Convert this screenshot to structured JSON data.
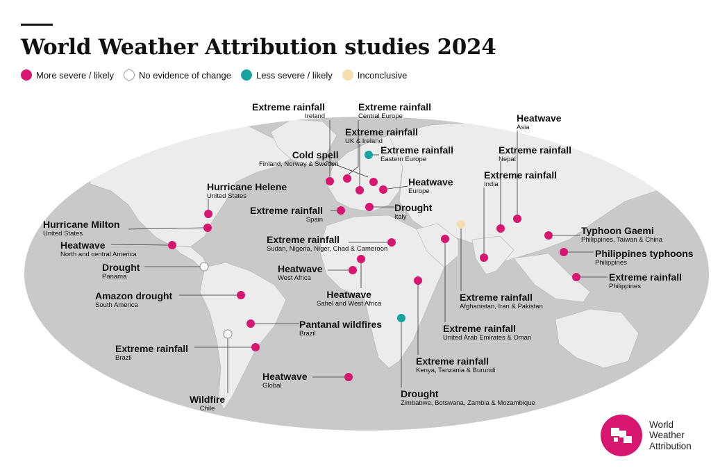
{
  "title": "World Weather Attribution studies 2024",
  "colors": {
    "more_severe": "#d6166f",
    "no_evidence": "#ffffff",
    "less_severe": "#17a3a0",
    "inconclusive": "#f6dfae",
    "land": "#ececec",
    "ocean": "#c9c9c9"
  },
  "legend": [
    {
      "key": "more_severe",
      "label": "More severe / likely"
    },
    {
      "key": "no_evidence",
      "label": "No evidence of change"
    },
    {
      "key": "less_severe",
      "label": "Less severe / likely"
    },
    {
      "key": "inconclusive",
      "label": "Inconclusive"
    }
  ],
  "studies": [
    {
      "title": "Extreme rainfall",
      "region": "Ireland",
      "result": "more_severe"
    },
    {
      "title": "Extreme rainfall",
      "region": "Central Europe",
      "result": "more_severe"
    },
    {
      "title": "Extreme rainfall",
      "region": "UK & Ireland",
      "result": "more_severe"
    },
    {
      "title": "Extreme rainfall",
      "region": "Eastern Europe",
      "result": "less_severe"
    },
    {
      "title": "Cold spell",
      "region": "Finland, Norway & Sweden",
      "result": "more_severe"
    },
    {
      "title": "Heatwave",
      "region": "Europe",
      "result": "more_severe"
    },
    {
      "title": "Extreme rainfall",
      "region": "Spain",
      "result": "more_severe"
    },
    {
      "title": "Drought",
      "region": "Italy",
      "result": "more_severe"
    },
    {
      "title": "Heatwave",
      "region": "Asia",
      "result": "more_severe"
    },
    {
      "title": "Extreme rainfall",
      "region": "Nepal",
      "result": "more_severe"
    },
    {
      "title": "Extreme rainfall",
      "region": "India",
      "result": "more_severe"
    },
    {
      "title": "Hurricane Helene",
      "region": "United States",
      "result": "more_severe"
    },
    {
      "title": "Hurricane Milton",
      "region": "United States",
      "result": "more_severe"
    },
    {
      "title": "Heatwave",
      "region": "North and central America",
      "result": "more_severe"
    },
    {
      "title": "Drought",
      "region": "Panama",
      "result": "no_evidence"
    },
    {
      "title": "Amazon drought",
      "region": "South America",
      "result": "more_severe"
    },
    {
      "title": "Extreme rainfall",
      "region": "Brazil",
      "result": "more_severe"
    },
    {
      "title": "Wildfire",
      "region": "Chile",
      "result": "no_evidence"
    },
    {
      "title": "Extreme rainfall",
      "region": "Sudan, Nigeria, Niger, Chad & Cameroon",
      "result": "more_severe"
    },
    {
      "title": "Heatwave",
      "region": "West Africa",
      "result": "more_severe"
    },
    {
      "title": "Heatwave",
      "region": "Sahel and West Africa",
      "result": "more_severe"
    },
    {
      "title": "Pantanal wildfires",
      "region": "Brazil",
      "result": "more_severe"
    },
    {
      "title": "Heatwave",
      "region": "Global",
      "result": "more_severe"
    },
    {
      "title": "Drought",
      "region": "Zimbabwe, Botswana, Zambia & Mozambique",
      "result": "less_severe"
    },
    {
      "title": "Extreme rainfall",
      "region": "Kenya, Tanzania & Burundi",
      "result": "more_severe"
    },
    {
      "title": "Extreme rainfall",
      "region": "United Arab Emirates & Oman",
      "result": "more_severe"
    },
    {
      "title": "Extreme rainfall",
      "region": "Afghanistan, Iran & Pakistan",
      "result": "inconclusive"
    },
    {
      "title": "Typhoon Gaemi",
      "region": "Philippines, Taiwan & China",
      "result": "more_severe"
    },
    {
      "title": "Philippines typhoons",
      "region": "Philippines",
      "result": "more_severe"
    },
    {
      "title": "Extreme rainfall",
      "region": "Philippines",
      "result": "more_severe"
    }
  ],
  "logo": {
    "line1": "World",
    "line2": "Weather",
    "line3": "Attribution"
  }
}
